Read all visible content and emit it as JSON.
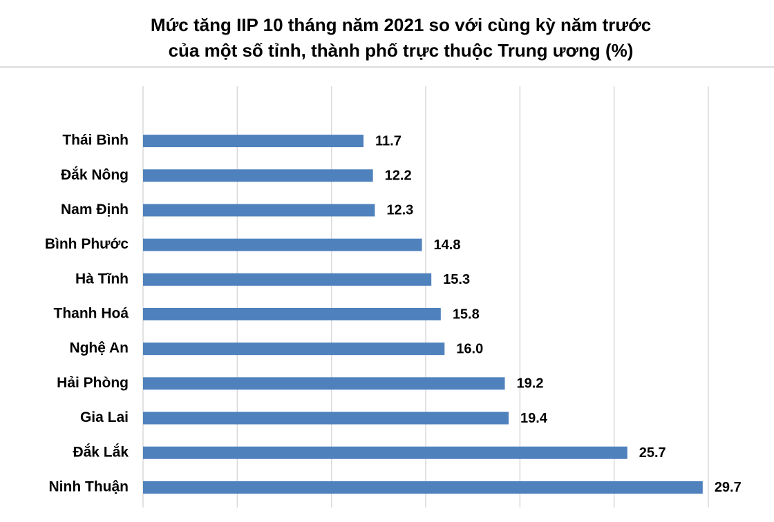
{
  "chart_data": {
    "type": "bar",
    "orientation": "horizontal",
    "title": [
      "Mức tăng IIP 10 tháng năm 2021 so với cùng kỳ năm trước",
      "của một số tỉnh, thành phố trực thuộc Trung ương (%)"
    ],
    "categories": [
      "Thái Bình",
      "Đắk Nông",
      "Nam Định",
      "Bình Phước",
      "Hà Tĩnh",
      "Thanh Hoá",
      "Nghệ An",
      "Hải Phòng",
      "Gia Lai",
      "Đắk Lắk",
      "Ninh Thuận"
    ],
    "values": [
      11.7,
      12.2,
      12.3,
      14.8,
      15.3,
      15.8,
      16.0,
      19.2,
      19.4,
      25.7,
      29.7
    ],
    "value_labels": [
      "11.7",
      "12.2",
      "12.3",
      "14.8",
      "15.3",
      "15.8",
      "16.0",
      "19.2",
      "19.4",
      "25.7",
      "29.7"
    ],
    "color": "#4f81bd",
    "xlim": [
      0,
      30
    ],
    "xticks": [
      0,
      5,
      10,
      15,
      20,
      25,
      30
    ],
    "grid": true
  }
}
